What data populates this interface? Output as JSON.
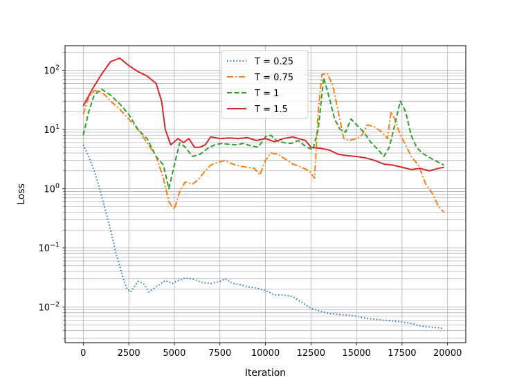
{
  "chart_data": {
    "type": "line",
    "title": "",
    "xlabel": "Iteration",
    "ylabel": "Loss",
    "xlim": [
      -1000,
      21000
    ],
    "ylim": [
      0.0025,
      260
    ],
    "yscale": "log",
    "grid": {
      "major": true,
      "minor_y": true
    },
    "legend_placement": "upper-center",
    "x_ticks": [
      0,
      2500,
      5000,
      7500,
      10000,
      12500,
      15000,
      17500,
      20000
    ],
    "x_tick_labels": [
      "0",
      "2500",
      "5000",
      "7500",
      "10000",
      "12500",
      "15000",
      "17500",
      "20000"
    ],
    "y_ticks": [
      0.01,
      0.1,
      1,
      10,
      100
    ],
    "y_tick_labels": [
      {
        "base": "10",
        "exp": "−2"
      },
      {
        "base": "10",
        "exp": "−1"
      },
      {
        "base": "10",
        "exp": "0"
      },
      {
        "base": "10",
        "exp": "1"
      },
      {
        "base": "10",
        "exp": "2"
      }
    ],
    "series": [
      {
        "name": "T = 0.25",
        "color": "#1f77b4",
        "dash": "dotted",
        "points": [
          [
            0,
            5.5
          ],
          [
            300,
            3.5
          ],
          [
            600,
            2.0
          ],
          [
            900,
            1.0
          ],
          [
            1200,
            0.45
          ],
          [
            1500,
            0.2
          ],
          [
            1800,
            0.08
          ],
          [
            2000,
            0.05
          ],
          [
            2200,
            0.03
          ],
          [
            2400,
            0.02
          ],
          [
            2600,
            0.018
          ],
          [
            2800,
            0.022
          ],
          [
            3000,
            0.027
          ],
          [
            3300,
            0.025
          ],
          [
            3600,
            0.018
          ],
          [
            4000,
            0.022
          ],
          [
            4500,
            0.028
          ],
          [
            4900,
            0.025
          ],
          [
            5200,
            0.028
          ],
          [
            5600,
            0.031
          ],
          [
            6000,
            0.03
          ],
          [
            6500,
            0.026
          ],
          [
            7000,
            0.025
          ],
          [
            7500,
            0.027
          ],
          [
            7800,
            0.03
          ],
          [
            8200,
            0.025
          ],
          [
            8600,
            0.024
          ],
          [
            9000,
            0.022
          ],
          [
            9500,
            0.021
          ],
          [
            10000,
            0.019
          ],
          [
            10500,
            0.016
          ],
          [
            11000,
            0.016
          ],
          [
            11500,
            0.015
          ],
          [
            12000,
            0.012
          ],
          [
            12500,
            0.0095
          ],
          [
            13000,
            0.0085
          ],
          [
            13500,
            0.0078
          ],
          [
            14000,
            0.0075
          ],
          [
            14500,
            0.0073
          ],
          [
            15000,
            0.007
          ],
          [
            15500,
            0.0065
          ],
          [
            16000,
            0.0062
          ],
          [
            16500,
            0.006
          ],
          [
            17000,
            0.0058
          ],
          [
            17500,
            0.0056
          ],
          [
            18000,
            0.0053
          ],
          [
            18500,
            0.0048
          ],
          [
            19000,
            0.0046
          ],
          [
            19500,
            0.0045
          ],
          [
            19800,
            0.0043
          ]
        ]
      },
      {
        "name": "T = 0.75",
        "color": "#ff7f0e",
        "dash": "dashdot",
        "points": [
          [
            0,
            18
          ],
          [
            300,
            35
          ],
          [
            600,
            45
          ],
          [
            900,
            44
          ],
          [
            1200,
            38
          ],
          [
            1500,
            30
          ],
          [
            2000,
            22
          ],
          [
            2500,
            15
          ],
          [
            3000,
            10
          ],
          [
            3500,
            6
          ],
          [
            4000,
            3.5
          ],
          [
            4400,
            1.5
          ],
          [
            4700,
            0.6
          ],
          [
            5000,
            0.45
          ],
          [
            5300,
            0.9
          ],
          [
            5600,
            1.3
          ],
          [
            6000,
            1.2
          ],
          [
            6300,
            1.4
          ],
          [
            6700,
            2
          ],
          [
            7000,
            2.5
          ],
          [
            7400,
            2.8
          ],
          [
            7800,
            3
          ],
          [
            8200,
            2.6
          ],
          [
            8600,
            2.4
          ],
          [
            9000,
            2.3
          ],
          [
            9400,
            2.2
          ],
          [
            9700,
            1.7
          ],
          [
            10000,
            3.0
          ],
          [
            10300,
            4.0
          ],
          [
            10700,
            3.8
          ],
          [
            11000,
            3.3
          ],
          [
            11500,
            2.6
          ],
          [
            12000,
            2.3
          ],
          [
            12400,
            2.0
          ],
          [
            12700,
            1.5
          ],
          [
            12900,
            20
          ],
          [
            13100,
            85
          ],
          [
            13400,
            88
          ],
          [
            13700,
            55
          ],
          [
            14000,
            20
          ],
          [
            14300,
            7
          ],
          [
            14600,
            6.5
          ],
          [
            15000,
            7.0
          ],
          [
            15300,
            8
          ],
          [
            15600,
            12
          ],
          [
            16000,
            11
          ],
          [
            16400,
            9
          ],
          [
            16700,
            7
          ],
          [
            16900,
            20
          ],
          [
            17100,
            15
          ],
          [
            17400,
            8
          ],
          [
            17700,
            5.5
          ],
          [
            18000,
            3.5
          ],
          [
            18400,
            2.5
          ],
          [
            18800,
            1.2
          ],
          [
            19200,
            0.8
          ],
          [
            19500,
            0.5
          ],
          [
            19800,
            0.4
          ]
        ]
      },
      {
        "name": "T = 1",
        "color": "#2ca02c",
        "dash": "dashed",
        "points": [
          [
            0,
            8
          ],
          [
            300,
            20
          ],
          [
            600,
            38
          ],
          [
            1000,
            48
          ],
          [
            1500,
            38
          ],
          [
            2000,
            27
          ],
          [
            2500,
            18
          ],
          [
            3000,
            10
          ],
          [
            3500,
            7
          ],
          [
            4000,
            3.5
          ],
          [
            4400,
            2.5
          ],
          [
            4700,
            1.0
          ],
          [
            5000,
            2.5
          ],
          [
            5300,
            6
          ],
          [
            5600,
            5
          ],
          [
            6000,
            3.5
          ],
          [
            6400,
            3.8
          ],
          [
            6800,
            4.7
          ],
          [
            7200,
            5.5
          ],
          [
            7600,
            5.8
          ],
          [
            8000,
            5.6
          ],
          [
            8400,
            5.5
          ],
          [
            8800,
            5.8
          ],
          [
            9200,
            5.3
          ],
          [
            9600,
            5.0
          ],
          [
            10000,
            7.5
          ],
          [
            10300,
            8
          ],
          [
            10600,
            6.5
          ],
          [
            11000,
            6.0
          ],
          [
            11400,
            5.8
          ],
          [
            11800,
            6.5
          ],
          [
            12200,
            5.2
          ],
          [
            12600,
            4.5
          ],
          [
            12900,
            10
          ],
          [
            13200,
            75
          ],
          [
            13500,
            35
          ],
          [
            13800,
            15
          ],
          [
            14100,
            10
          ],
          [
            14400,
            9
          ],
          [
            14700,
            15
          ],
          [
            15000,
            12
          ],
          [
            15400,
            9
          ],
          [
            15800,
            6
          ],
          [
            16200,
            4.5
          ],
          [
            16500,
            3.5
          ],
          [
            16800,
            5
          ],
          [
            17100,
            12
          ],
          [
            17400,
            30
          ],
          [
            17700,
            20
          ],
          [
            18000,
            8
          ],
          [
            18300,
            5
          ],
          [
            18600,
            4
          ],
          [
            18900,
            3.5
          ],
          [
            19300,
            3.0
          ],
          [
            19800,
            2.5
          ]
        ]
      },
      {
        "name": "T = 1.5",
        "color": "#d62728",
        "dash": "solid",
        "points": [
          [
            0,
            25
          ],
          [
            500,
            48
          ],
          [
            1000,
            85
          ],
          [
            1500,
            140
          ],
          [
            2000,
            160
          ],
          [
            2500,
            120
          ],
          [
            3000,
            95
          ],
          [
            3500,
            80
          ],
          [
            4000,
            60
          ],
          [
            4300,
            30
          ],
          [
            4500,
            10
          ],
          [
            4800,
            5.5
          ],
          [
            5200,
            7
          ],
          [
            5500,
            6
          ],
          [
            5800,
            7
          ],
          [
            6100,
            5
          ],
          [
            6400,
            5
          ],
          [
            6700,
            5.5
          ],
          [
            7000,
            7.5
          ],
          [
            7500,
            7.0
          ],
          [
            8000,
            7.2
          ],
          [
            8500,
            7.0
          ],
          [
            9000,
            7.3
          ],
          [
            9500,
            6.5
          ],
          [
            10000,
            7.0
          ],
          [
            10500,
            6.2
          ],
          [
            11000,
            7.0
          ],
          [
            11500,
            7.5
          ],
          [
            11800,
            7.0
          ],
          [
            12200,
            6.5
          ],
          [
            12500,
            5.0
          ],
          [
            13000,
            4.8
          ],
          [
            13500,
            4.5
          ],
          [
            14000,
            3.8
          ],
          [
            14500,
            3.6
          ],
          [
            15000,
            3.5
          ],
          [
            15500,
            3.3
          ],
          [
            16000,
            3.0
          ],
          [
            16500,
            2.6
          ],
          [
            17000,
            2.5
          ],
          [
            17500,
            2.3
          ],
          [
            18000,
            2.1
          ],
          [
            18500,
            2.2
          ],
          [
            19000,
            2.0
          ],
          [
            19500,
            2.2
          ],
          [
            19800,
            2.3
          ]
        ]
      }
    ]
  }
}
